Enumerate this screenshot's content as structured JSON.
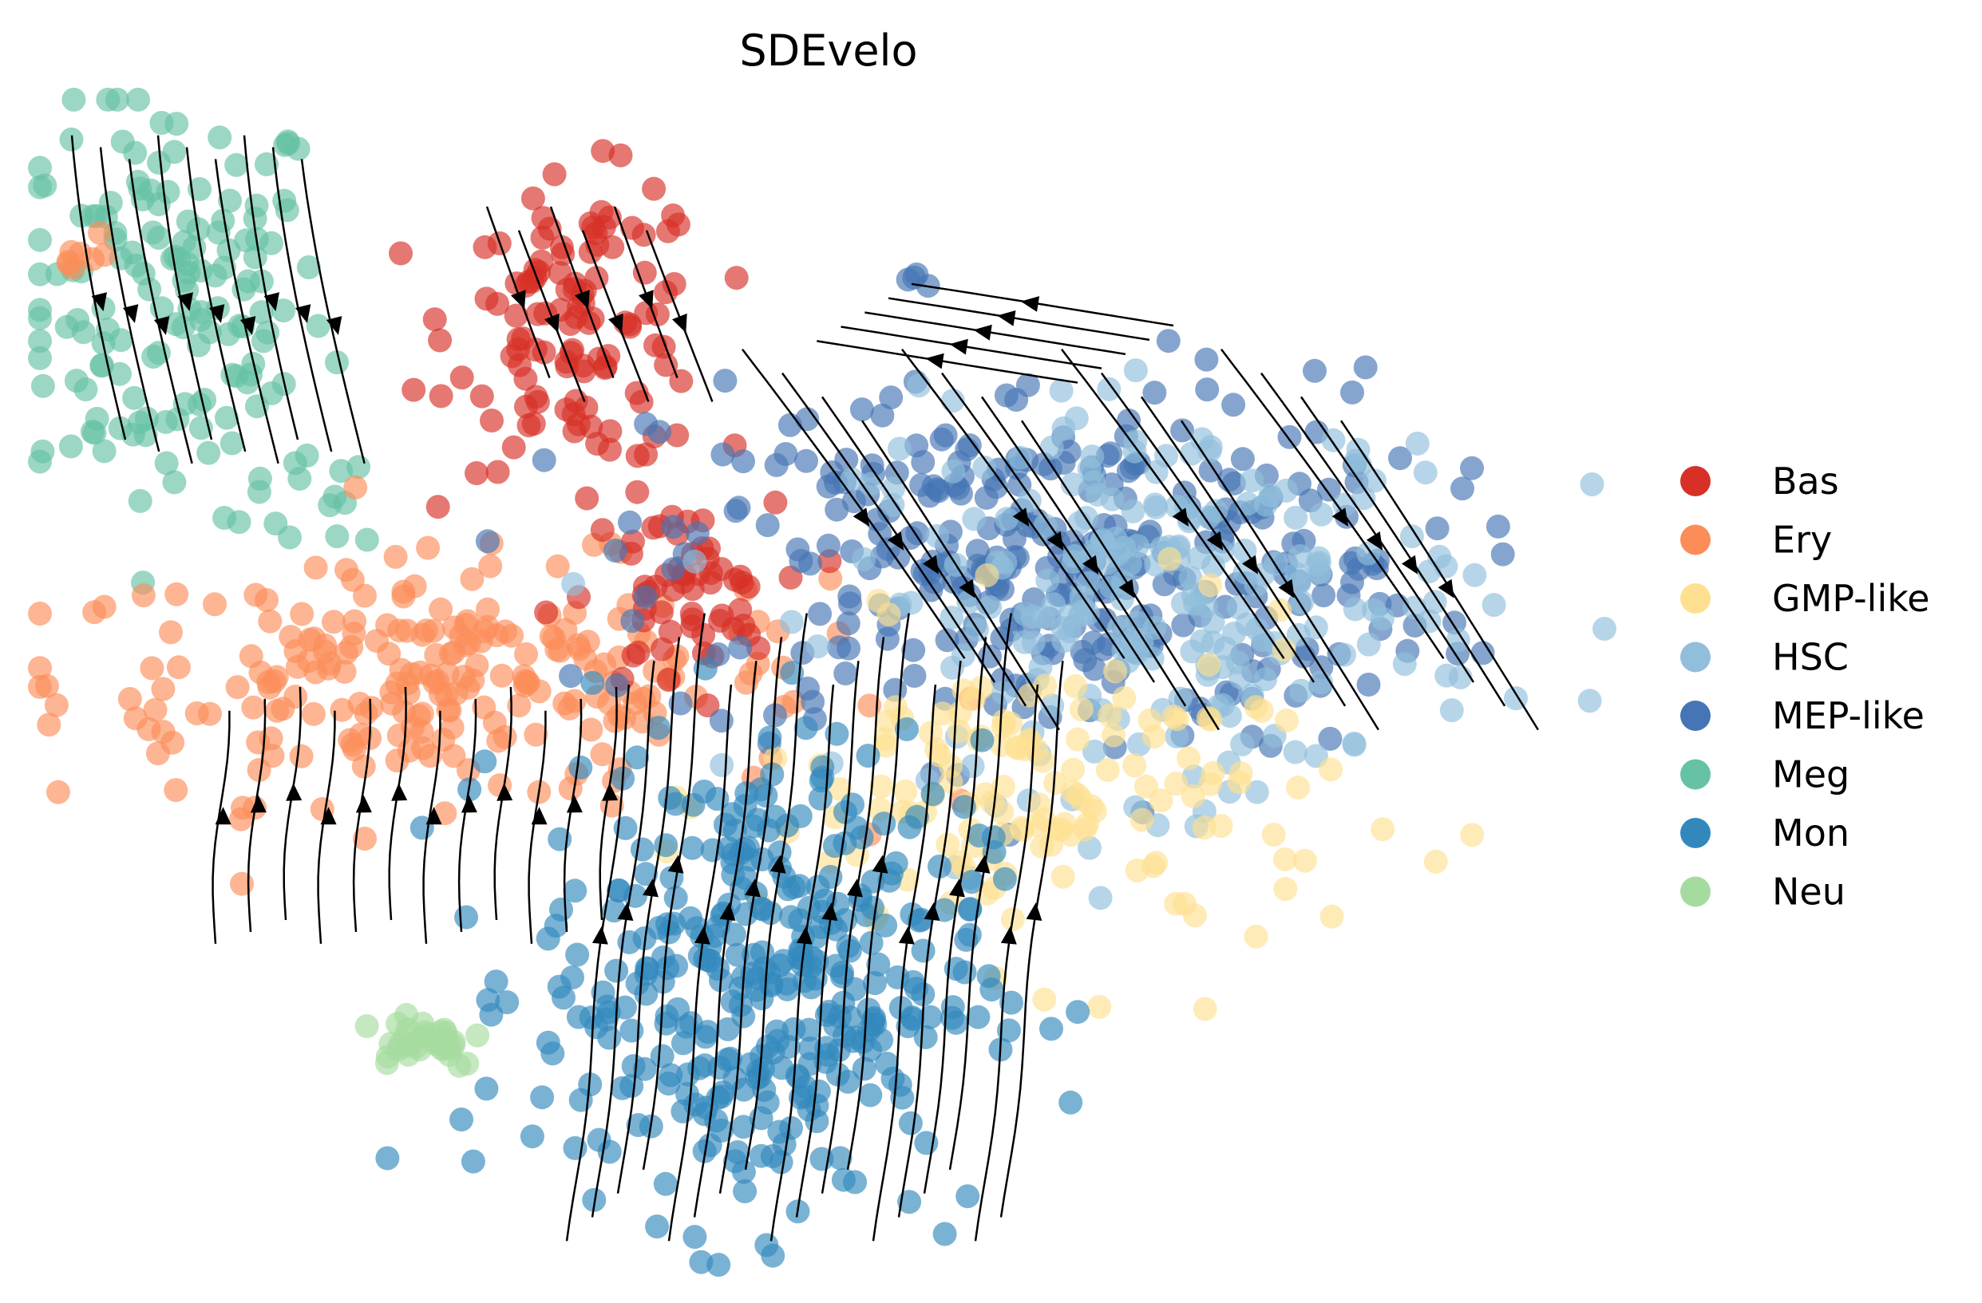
{
  "chart_data": {
    "type": "scatter",
    "title": "SDEvelo",
    "xlabel": "",
    "ylabel": "",
    "grid": false,
    "axes_visible": false,
    "legend_position": "right",
    "overlay": "velocity streamlines with arrowheads (black)",
    "xlim": [
      0,
      100
    ],
    "ylim": [
      0,
      100
    ],
    "series": [
      {
        "name": "Bas",
        "color": "#d73027"
      },
      {
        "name": "Ery",
        "color": "#fc8d59"
      },
      {
        "name": "GMP-like",
        "color": "#fee090"
      },
      {
        "name": "HSC",
        "color": "#91bfdb"
      },
      {
        "name": "MEP-like",
        "color": "#4575b4"
      },
      {
        "name": "Meg",
        "color": "#66c2a5"
      },
      {
        "name": "Mon",
        "color": "#3288bd"
      },
      {
        "name": "Neu",
        "color": "#a6dba0"
      }
    ],
    "clusters": [
      {
        "series": "Meg",
        "center": [
          9,
          82
        ],
        "spread": [
          5,
          9
        ],
        "n": 150
      },
      {
        "series": "Meg",
        "center": [
          20,
          66
        ],
        "spread": [
          3,
          3
        ],
        "n": 14
      },
      {
        "series": "Ery",
        "center": [
          3,
          86
        ],
        "spread": [
          1.2,
          1.2
        ],
        "n": 8
      },
      {
        "series": "Ery",
        "center": [
          26,
          50
        ],
        "spread": [
          12,
          5
        ],
        "n": 240
      },
      {
        "series": "Bas",
        "center": [
          35,
          80
        ],
        "spread": [
          4,
          6
        ],
        "n": 120
      },
      {
        "series": "Bas",
        "center": [
          41,
          57
        ],
        "spread": [
          3,
          4
        ],
        "n": 60
      },
      {
        "series": "MEP-like",
        "center": [
          64,
          60
        ],
        "spread": [
          12,
          8
        ],
        "n": 340
      },
      {
        "series": "MEP-like",
        "center": [
          83,
          59
        ],
        "spread": [
          1,
          1
        ],
        "n": 5
      },
      {
        "series": "MEP-like",
        "center": [
          56,
          84
        ],
        "spread": [
          0.6,
          0.6
        ],
        "n": 4
      },
      {
        "series": "HSC",
        "center": [
          72,
          57
        ],
        "spread": [
          10,
          8
        ],
        "n": 240
      },
      {
        "series": "GMP-like",
        "center": [
          64,
          40
        ],
        "spread": [
          9,
          7
        ],
        "n": 150
      },
      {
        "series": "Mon",
        "center": [
          46,
          25
        ],
        "spread": [
          7,
          10
        ],
        "n": 380
      },
      {
        "series": "Neu",
        "center": [
          25,
          20
        ],
        "spread": [
          2,
          1.2
        ],
        "n": 35
      }
    ]
  }
}
